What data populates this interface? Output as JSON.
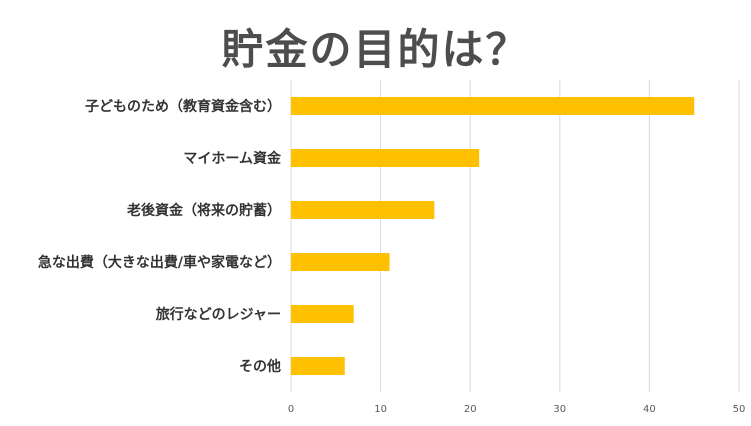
{
  "chart_data": {
    "type": "bar",
    "orientation": "horizontal",
    "title": "貯金の目的は？",
    "categories": [
      "子どものため（教育資金含む）",
      "マイホーム資金",
      "老後資金（将来の貯蓄）",
      "急な出費（大きな出費/車や家電など）",
      "旅行などのレジャー",
      "その他"
    ],
    "values": [
      45,
      21,
      16,
      11,
      7,
      6
    ],
    "xlim": [
      0,
      50
    ],
    "xticks": [
      0,
      10,
      20,
      30,
      40,
      50
    ],
    "grid": true,
    "legend": "none",
    "bar_color": "#ffc000",
    "grid_color": "#d9d9d9"
  }
}
